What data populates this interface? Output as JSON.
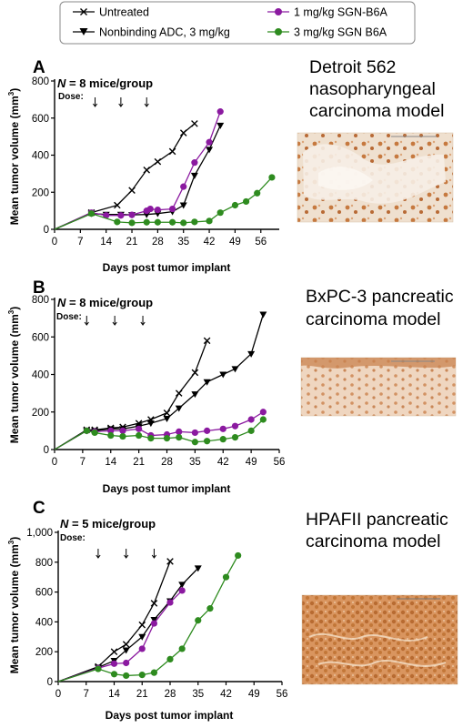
{
  "legend": {
    "entries": [
      {
        "label": "Untreated",
        "marker": "x",
        "color": "#000000"
      },
      {
        "label": "Nonbinding ADC, 3 mg/kg",
        "marker": "triangle-down",
        "color": "#000000"
      },
      {
        "label": "1 mg/kg SGN-B6A",
        "marker": "circle",
        "color": "#8b1aa0"
      },
      {
        "label": "3 mg/kg SGN B6A",
        "marker": "circle",
        "color": "#2e8b1f"
      }
    ]
  },
  "dose_label": "Dose:",
  "chart_data": [
    {
      "panel": "A",
      "type": "line",
      "ylabel_main": "Mean tumor volume (mm",
      "ylabel_sup": "3",
      "ylabel_end": ")",
      "xlabel": "Days post tumor implant",
      "n_prefix": "N",
      "n_suffix": " = 8 mice/group",
      "x_ticks": [
        0,
        7,
        14,
        21,
        28,
        35,
        42,
        49,
        56
      ],
      "y_ticks": [
        0,
        200,
        400,
        600,
        800
      ],
      "y_tick_labels": [
        "0",
        "200",
        "400",
        "600",
        "800"
      ],
      "xlim": [
        0,
        61
      ],
      "ylim": [
        0,
        800
      ],
      "dose_days": [
        11,
        18,
        25
      ],
      "model_lines": [
        "Detroit 562",
        "nasopharyngeal",
        "carcinoma model"
      ],
      "series": [
        {
          "name": "Untreated",
          "marker": "x",
          "color": "#000000",
          "x": [
            0,
            10,
            17,
            21,
            25,
            28,
            32,
            35,
            38
          ],
          "y": [
            0,
            90,
            130,
            210,
            320,
            365,
            420,
            520,
            570
          ]
        },
        {
          "name": "Nonbinding ADC, 3 mg/kg",
          "marker": "triangle-down",
          "color": "#000000",
          "x": [
            0,
            10,
            14,
            18,
            21,
            25,
            28,
            32,
            35,
            38,
            42,
            45
          ],
          "y": [
            0,
            85,
            80,
            80,
            78,
            80,
            85,
            95,
            130,
            290,
            430,
            560
          ]
        },
        {
          "name": "1 mg/kg SGN-B6A",
          "marker": "circle",
          "color": "#8b1aa0",
          "x": [
            0,
            10,
            14,
            18,
            21,
            25,
            26,
            28,
            32,
            35,
            38,
            42,
            45
          ],
          "y": [
            0,
            90,
            75,
            75,
            78,
            100,
            110,
            105,
            110,
            230,
            360,
            470,
            635
          ]
        },
        {
          "name": "3 mg/kg SGN B6A",
          "marker": "circle",
          "color": "#2e8b1f",
          "x": [
            0,
            10,
            17,
            21,
            25,
            28,
            32,
            35,
            38,
            42,
            45,
            49,
            52,
            55,
            59
          ],
          "y": [
            0,
            85,
            40,
            35,
            38,
            38,
            38,
            35,
            40,
            45,
            90,
            130,
            150,
            195,
            280
          ]
        }
      ]
    },
    {
      "panel": "B",
      "type": "line",
      "ylabel_main": "Mean tumor volume (mm",
      "ylabel_sup": "3",
      "ylabel_end": ")",
      "xlabel": "Days post tumor implant",
      "n_prefix": "N",
      "n_suffix": " = 8 mice/group",
      "x_ticks": [
        0,
        7,
        14,
        21,
        28,
        35,
        42,
        49,
        56
      ],
      "y_ticks": [
        0,
        200,
        400,
        600,
        800
      ],
      "y_tick_labels": [
        "0",
        "200",
        "400",
        "600",
        "800"
      ],
      "xlim": [
        0,
        56
      ],
      "ylim": [
        0,
        800
      ],
      "dose_days": [
        8,
        15,
        22
      ],
      "model_lines": [
        "BxPC-3 pancreatic",
        "carcinoma model"
      ],
      "series": [
        {
          "name": "Untreated",
          "marker": "x",
          "color": "#000000",
          "x": [
            0,
            8,
            10,
            14,
            17,
            21,
            24,
            28,
            31,
            35,
            38
          ],
          "y": [
            0,
            105,
            105,
            115,
            120,
            140,
            160,
            195,
            300,
            410,
            580
          ]
        },
        {
          "name": "Nonbinding ADC, 3 mg/kg",
          "marker": "triangle-down",
          "color": "#000000",
          "x": [
            0,
            8,
            10,
            14,
            17,
            21,
            24,
            28,
            31,
            35,
            38,
            42,
            45,
            49,
            52
          ],
          "y": [
            0,
            100,
            100,
            110,
            110,
            125,
            140,
            165,
            220,
            295,
            360,
            400,
            430,
            510,
            720
          ]
        },
        {
          "name": "1 mg/kg SGN-B6A",
          "marker": "circle",
          "color": "#8b1aa0",
          "x": [
            0,
            8,
            10,
            14,
            17,
            21,
            24,
            28,
            31,
            35,
            38,
            42,
            45,
            49,
            52
          ],
          "y": [
            0,
            100,
            95,
            100,
            100,
            110,
            75,
            80,
            95,
            90,
            100,
            110,
            125,
            160,
            200
          ]
        },
        {
          "name": "3 mg/kg SGN B6A",
          "marker": "circle",
          "color": "#2e8b1f",
          "x": [
            0,
            8,
            10,
            14,
            17,
            21,
            24,
            28,
            31,
            35,
            38,
            42,
            45,
            49,
            52
          ],
          "y": [
            0,
            100,
            90,
            75,
            70,
            75,
            60,
            60,
            65,
            40,
            45,
            55,
            65,
            100,
            160
          ]
        }
      ]
    },
    {
      "panel": "C",
      "type": "line",
      "ylabel_main": "Mean tumor volume (mm",
      "ylabel_sup": "3",
      "ylabel_end": ")",
      "xlabel": "Days post tumor implant",
      "n_prefix": "N",
      "n_suffix": " = 5 mice/group",
      "x_ticks": [
        0,
        7,
        14,
        21,
        28,
        35,
        42,
        49,
        56
      ],
      "y_ticks": [
        0,
        200,
        400,
        600,
        800,
        1000
      ],
      "y_tick_labels": [
        "0",
        "200",
        "400",
        "600",
        "800",
        "1,000"
      ],
      "xlim": [
        0,
        56
      ],
      "ylim": [
        0,
        1000
      ],
      "dose_days": [
        10,
        17,
        24
      ],
      "model_lines": [
        "HPAFII pancreatic",
        "carcinoma model"
      ],
      "series": [
        {
          "name": "Untreated",
          "marker": "x",
          "color": "#000000",
          "x": [
            0,
            10,
            14,
            17,
            21,
            24,
            28
          ],
          "y": [
            0,
            100,
            200,
            250,
            380,
            525,
            805
          ]
        },
        {
          "name": "Nonbinding ADC, 3 mg/kg",
          "marker": "triangle-down",
          "color": "#000000",
          "x": [
            0,
            10,
            14,
            17,
            21,
            24,
            28,
            31,
            35
          ],
          "y": [
            0,
            95,
            140,
            210,
            300,
            415,
            540,
            650,
            760
          ]
        },
        {
          "name": "1 mg/kg SGN-B6A",
          "marker": "circle",
          "color": "#8b1aa0",
          "x": [
            0,
            10,
            14,
            17,
            21,
            24,
            28,
            31
          ],
          "y": [
            0,
            90,
            120,
            125,
            220,
            390,
            530,
            610
          ]
        },
        {
          "name": "3 mg/kg SGN B6A",
          "marker": "circle",
          "color": "#2e8b1f",
          "x": [
            0,
            10,
            14,
            17,
            21,
            24,
            28,
            31,
            35,
            38,
            42,
            45
          ],
          "y": [
            0,
            85,
            50,
            40,
            45,
            60,
            150,
            220,
            410,
            490,
            700,
            845
          ]
        }
      ]
    }
  ]
}
